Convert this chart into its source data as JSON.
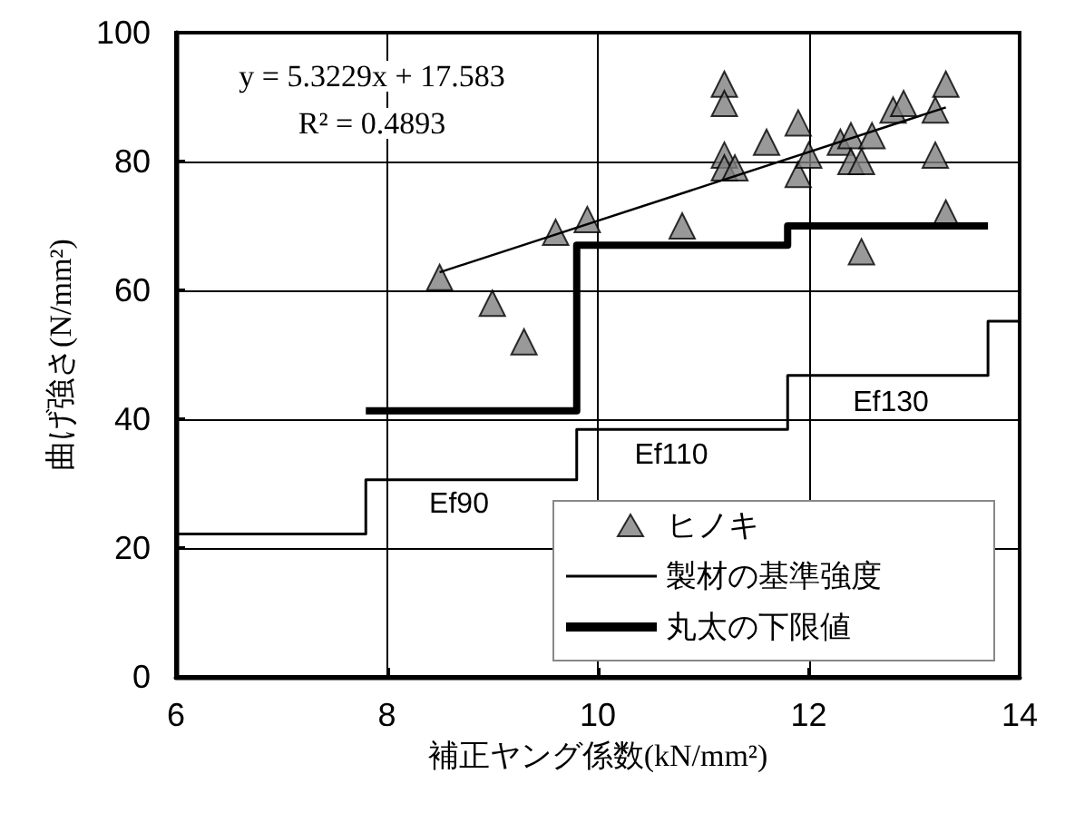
{
  "chart_data": {
    "type": "scatter",
    "xlabel": "補正ヤング係数(kN/mm²)",
    "ylabel": "曲げ強さ(N/mm²)",
    "xlim": [
      6,
      14
    ],
    "xticks": [
      6,
      8,
      10,
      12,
      14
    ],
    "ylim": [
      0,
      100
    ],
    "yticks": [
      0,
      20,
      40,
      60,
      80,
      100
    ],
    "grid": true,
    "legend": "bottom right",
    "series": [
      {
        "name": "ヒノキ",
        "marker": "triangle",
        "color": "#808080",
        "x": [
          8.5,
          9.0,
          9.3,
          9.6,
          9.9,
          10.8,
          11.2,
          11.2,
          11.2,
          11.2,
          11.3,
          11.6,
          11.9,
          11.9,
          12.0,
          12.3,
          12.4,
          12.4,
          12.5,
          12.6,
          12.5,
          12.8,
          12.9,
          13.3,
          13.2,
          13.2,
          13.3
        ],
        "values": [
          62,
          58,
          52,
          69,
          71,
          70,
          92,
          89,
          81,
          79,
          79,
          83,
          86,
          78,
          81,
          83,
          84,
          80,
          80,
          84,
          66,
          88,
          89,
          92,
          88,
          81,
          72
        ]
      },
      {
        "type": "line",
        "color": "#000000",
        "x": [
          8.5,
          13.3
        ],
        "values": [
          62.8,
          88.4
        ]
      },
      {
        "name": "製材の基準強度",
        "type": "step",
        "color": "#000000",
        "x": [
          6,
          7.8,
          9.8,
          11.8,
          13.7,
          14
        ],
        "values": [
          22.2,
          30.6,
          38.4,
          46.8,
          55.2,
          55.2
        ]
      },
      {
        "name": "丸太の下限値",
        "type": "step",
        "color": "#000000",
        "x": [
          7.8,
          9.8,
          11.8,
          13.7
        ],
        "values": [
          41.3,
          67,
          70,
          70
        ]
      }
    ],
    "annotations": [
      "y = 5.3229x + 17.583",
      "R² = 0.4893",
      "Ef90",
      "Ef110",
      "Ef130"
    ]
  }
}
